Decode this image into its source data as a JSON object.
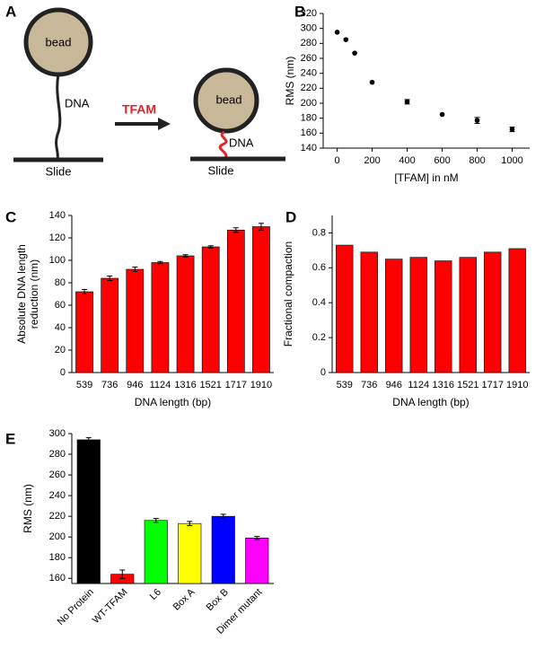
{
  "diagram": {
    "panel": "A",
    "bead_before": "bead",
    "dna_before": "DNA",
    "slide_before": "Slide",
    "arrow_label": "TFAM",
    "bead_after": "bead",
    "dna_after": "DNA",
    "slide_after": "Slide"
  },
  "chart_data": [
    {
      "panel": "B",
      "type": "scatter",
      "xlabel": "[TFAM] in nM",
      "ylabel": [
        "RMS (nm)"
      ],
      "x": [
        0,
        50,
        100,
        200,
        400,
        600,
        800,
        1000
      ],
      "values": [
        295,
        285,
        267,
        228,
        202,
        185,
        177,
        165
      ],
      "errors": [
        0,
        0,
        0,
        0,
        3,
        0,
        4,
        3
      ],
      "color": "#000000",
      "xlim": [
        -80,
        1100
      ],
      "xticks": [
        0,
        200,
        400,
        600,
        800,
        1000
      ],
      "ylim": [
        140,
        320
      ],
      "yticks": [
        140,
        160,
        180,
        200,
        220,
        240,
        260,
        280,
        300,
        320
      ]
    },
    {
      "panel": "C",
      "type": "bar",
      "xlabel": "DNA length (bp)",
      "ylabel": [
        "Absolute DNA length",
        "reduction (nm)"
      ],
      "categories": [
        "539",
        "736",
        "946",
        "1124",
        "1316",
        "1521",
        "1717",
        "1910"
      ],
      "values": [
        72,
        84,
        92,
        98,
        104,
        112,
        127,
        130
      ],
      "errors": [
        2,
        2,
        2,
        1,
        1,
        1,
        2,
        3
      ],
      "color": "#ff0000",
      "ylim": [
        0,
        140
      ],
      "yticks": [
        0,
        20,
        40,
        60,
        80,
        100,
        120,
        140
      ]
    },
    {
      "panel": "D",
      "type": "bar",
      "xlabel": "DNA length (bp)",
      "ylabel": [
        "Fractional compaction"
      ],
      "categories": [
        "539",
        "736",
        "946",
        "1124",
        "1316",
        "1521",
        "1717",
        "1910"
      ],
      "values": [
        0.73,
        0.69,
        0.65,
        0.66,
        0.64,
        0.66,
        0.69,
        0.71
      ],
      "color": "#ff0000",
      "ylim": [
        0,
        0.9
      ],
      "yticks": [
        0,
        0.2,
        0.4,
        0.6,
        0.8
      ]
    },
    {
      "panel": "E",
      "type": "bar",
      "ylabel": [
        "RMS (nm)"
      ],
      "rotate_labels": true,
      "categories": [
        "No Protein",
        "WT-TFAM",
        "L6",
        "Box A",
        "Box B",
        "Dimer mutant"
      ],
      "values": [
        294,
        164,
        216,
        213,
        220,
        199
      ],
      "errors": [
        2,
        4,
        2,
        2,
        2,
        1.5
      ],
      "colors": [
        "#000000",
        "#ff0000",
        "#00ff00",
        "#ffff00",
        "#0000ff",
        "#ff00ff"
      ],
      "ylim": [
        155,
        300
      ],
      "yticks": [
        160,
        180,
        200,
        220,
        240,
        260,
        280,
        300
      ]
    }
  ]
}
